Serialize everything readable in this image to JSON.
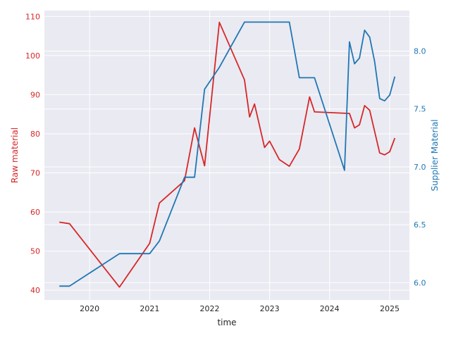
{
  "chart_data": {
    "type": "line",
    "xlabel": "time",
    "ylabel_left": "Raw material",
    "ylabel_right": "Supplier Material",
    "xlim": [
      "2019-04-01",
      "2025-05-01"
    ],
    "x_ticks": [
      "2020",
      "2021",
      "2022",
      "2023",
      "2024",
      "2025"
    ],
    "ylim_left": [
      37.5,
      111.5
    ],
    "ylim_right": [
      5.85,
      8.35
    ],
    "y_ticks_left": [
      "40",
      "50",
      "60",
      "70",
      "80",
      "90",
      "100",
      "110"
    ],
    "y_ticks_right": [
      "6.0",
      "6.5",
      "7.0",
      "7.5",
      "8.0"
    ],
    "grid": true,
    "colors": {
      "left_axis": "#d62728",
      "right_axis": "#1f77b4",
      "background": "#eaeaf2",
      "grid": "#ffffff"
    },
    "series": [
      {
        "axis": "left",
        "color": "#d62728",
        "points": [
          [
            "2019-07-01",
            57.4
          ],
          [
            "2019-09-01",
            57.0
          ],
          [
            "2020-07-01",
            40.8
          ],
          [
            "2021-01-01",
            52.0
          ],
          [
            "2021-03-01",
            62.3
          ],
          [
            "2021-08-01",
            68.0
          ],
          [
            "2021-10-01",
            81.5
          ],
          [
            "2021-12-01",
            71.8
          ],
          [
            "2022-03-01",
            108.5
          ],
          [
            "2022-08-01",
            93.8
          ],
          [
            "2022-09-01",
            84.3
          ],
          [
            "2022-10-01",
            87.6
          ],
          [
            "2022-12-01",
            76.5
          ],
          [
            "2023-01-01",
            78.1
          ],
          [
            "2023-03-01",
            73.4
          ],
          [
            "2023-05-01",
            71.7
          ],
          [
            "2023-07-01",
            76.1
          ],
          [
            "2023-09-01",
            89.4
          ],
          [
            "2023-10-01",
            85.6
          ],
          [
            "2024-05-01",
            85.2
          ],
          [
            "2024-06-01",
            81.5
          ],
          [
            "2024-07-01",
            82.3
          ],
          [
            "2024-08-01",
            87.2
          ],
          [
            "2024-09-01",
            86.0
          ],
          [
            "2024-10-01",
            80.6
          ],
          [
            "2024-11-01",
            75.1
          ],
          [
            "2024-12-01",
            74.6
          ],
          [
            "2025-01-01",
            75.4
          ],
          [
            "2025-02-01",
            78.9
          ]
        ]
      },
      {
        "axis": "right",
        "color": "#1f77b4",
        "points": [
          [
            "2019-07-01",
            5.97
          ],
          [
            "2019-09-01",
            5.97
          ],
          [
            "2020-07-01",
            6.25
          ],
          [
            "2021-01-01",
            6.25
          ],
          [
            "2021-03-01",
            6.36
          ],
          [
            "2021-08-01",
            6.91
          ],
          [
            "2021-10-01",
            6.91
          ],
          [
            "2021-12-01",
            7.67
          ],
          [
            "2022-03-01",
            7.86
          ],
          [
            "2022-08-01",
            8.25
          ],
          [
            "2023-05-01",
            8.25
          ],
          [
            "2023-07-01",
            7.77
          ],
          [
            "2023-10-01",
            7.77
          ],
          [
            "2024-04-01",
            6.97
          ],
          [
            "2024-05-01",
            8.08
          ],
          [
            "2024-06-01",
            7.89
          ],
          [
            "2024-07-01",
            7.94
          ],
          [
            "2024-08-01",
            8.18
          ],
          [
            "2024-09-01",
            8.12
          ],
          [
            "2024-10-01",
            7.91
          ],
          [
            "2024-11-01",
            7.59
          ],
          [
            "2024-12-01",
            7.57
          ],
          [
            "2025-01-01",
            7.62
          ],
          [
            "2025-02-01",
            7.78
          ]
        ]
      }
    ]
  }
}
